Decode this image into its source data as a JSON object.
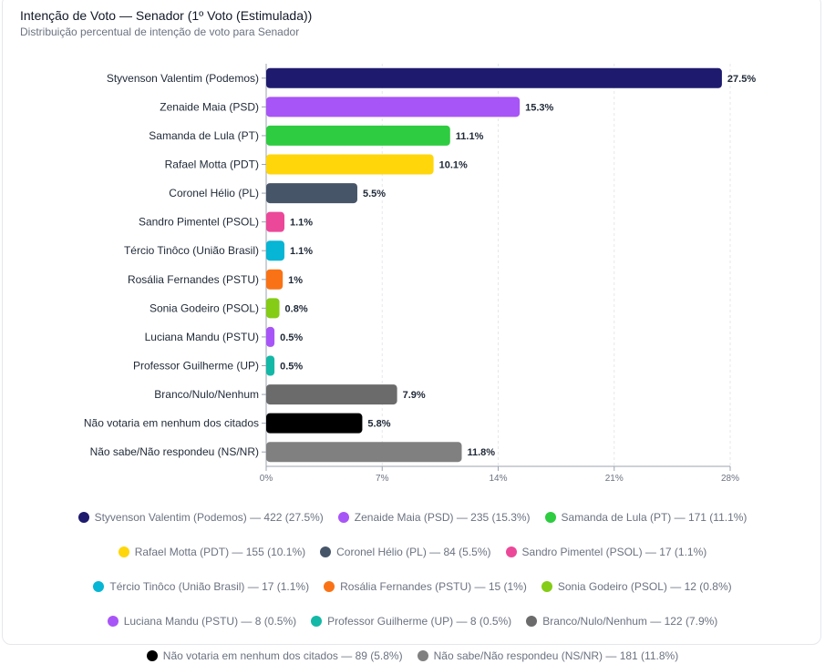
{
  "title": "Intenção de Voto — Senador (1º Voto (Estimulada))",
  "subtitle": "Distribuição percentual de intenção de voto para Senador",
  "chart_data": {
    "type": "bar",
    "orientation": "horizontal",
    "title": "Intenção de Voto — Senador (1º Voto (Estimulada))",
    "subtitle": "Distribuição percentual de intenção de voto para Senador",
    "categories": [
      "Styvenson Valentim (Podemos)",
      "Zenaide Maia (PSD)",
      "Samanda de Lula (PT)",
      "Rafael Motta (PDT)",
      "Coronel Hélio (PL)",
      "Sandro Pimentel (PSOL)",
      "Tércio Tinôco (União Brasil)",
      "Rosália Fernandes (PSTU)",
      "Sonia Godeiro (PSOL)",
      "Luciana Mandu (PSTU)",
      "Professor Guilherme (UP)",
      "Branco/Nulo/Nenhum",
      "Não votaria em nenhum dos citados",
      "Não sabe/Não respondeu (NS/NR)"
    ],
    "values": [
      27.5,
      15.3,
      11.1,
      10.1,
      5.5,
      1.1,
      1.1,
      1,
      0.8,
      0.5,
      0.5,
      7.9,
      5.8,
      11.8
    ],
    "value_labels": [
      "27.5%",
      "15.3%",
      "11.1%",
      "10.1%",
      "5.5%",
      "1.1%",
      "1.1%",
      "1%",
      "0.8%",
      "0.5%",
      "0.5%",
      "7.9%",
      "5.8%",
      "11.8%"
    ],
    "colors": [
      "#1e1b6e",
      "#a855f7",
      "#2ecc40",
      "#ffd60a",
      "#475569",
      "#ec4899",
      "#06b6d4",
      "#f97316",
      "#84cc16",
      "#a855f7",
      "#14b8a6",
      "#6b6b6b",
      "#000000",
      "#808080"
    ],
    "xlim": [
      0,
      28
    ],
    "xticks": [
      0,
      7,
      14,
      21,
      28
    ],
    "xtick_labels": [
      "0%",
      "7%",
      "14%",
      "21%",
      "28%"
    ],
    "grid": true,
    "legend_position": "bottom",
    "legend": [
      "Styvenson Valentim (Podemos) — 422 (27.5%)",
      "Zenaide Maia (PSD) — 235 (15.3%)",
      "Samanda de Lula (PT) — 171 (11.1%)",
      "Rafael Motta (PDT) — 155 (10.1%)",
      "Coronel Hélio (PL) — 84 (5.5%)",
      "Sandro Pimentel (PSOL) — 17 (1.1%)",
      "Tércio Tinôco (União Brasil) — 17 (1.1%)",
      "Rosália Fernandes (PSTU) — 15 (1%)",
      "Sonia Godeiro (PSOL) — 12 (0.8%)",
      "Luciana Mandu (PSTU) — 8 (0.5%)",
      "Professor Guilherme (UP) — 8 (0.5%)",
      "Branco/Nulo/Nenhum — 122 (7.9%)",
      "Não votaria em nenhum dos citados — 89 (5.8%)",
      "Não sabe/Não respondeu (NS/NR) — 181 (11.8%)"
    ]
  }
}
